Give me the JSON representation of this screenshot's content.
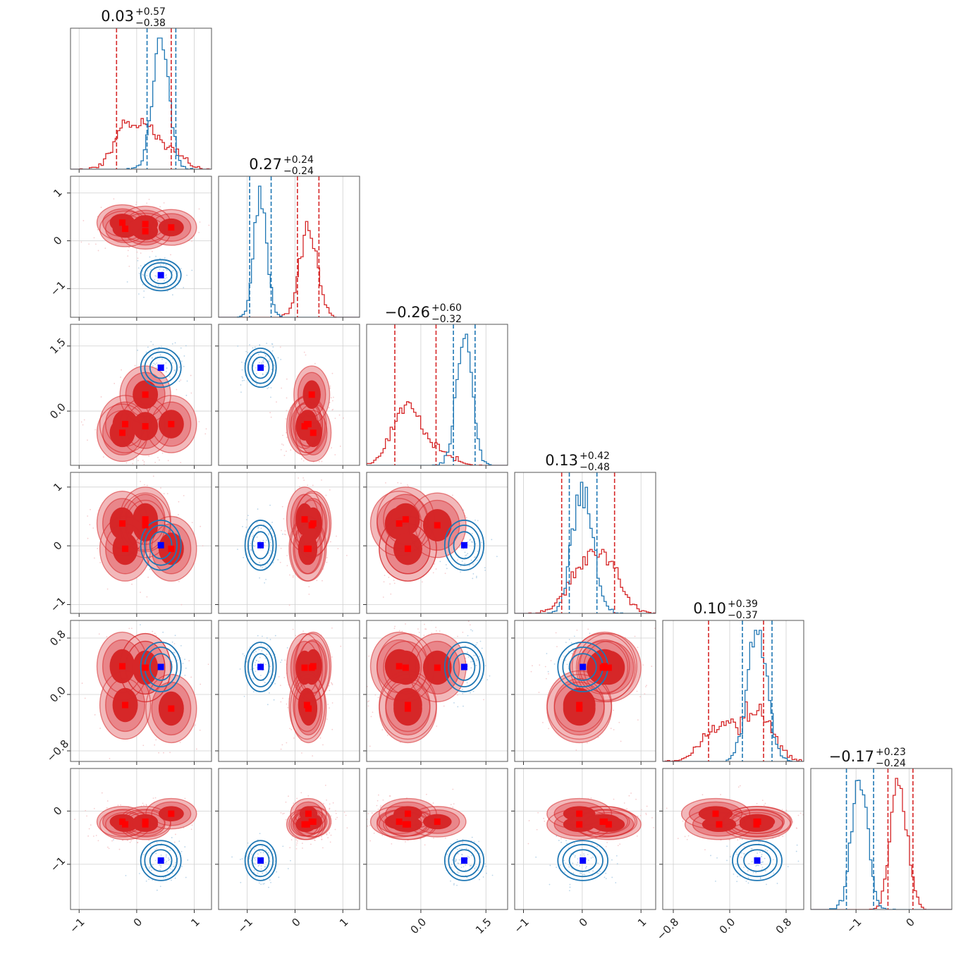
{
  "chart_data": {
    "type": "corner",
    "n_params": 6,
    "colors": {
      "red": "#d62728",
      "red_fill": "#e9868a",
      "red_outer": "#f2b8ba",
      "blue": "#1f77b4",
      "marker_red": "#ff0000",
      "marker_blue": "#0000ff"
    },
    "titles": [
      {
        "value": "0.03",
        "plus": "+0.57",
        "minus": "−0.38"
      },
      {
        "value": "0.27",
        "plus": "+0.24",
        "minus": "−0.24"
      },
      {
        "value": "−0.26",
        "plus": "+0.60",
        "minus": "−0.32"
      },
      {
        "value": "0.13",
        "plus": "+0.42",
        "minus": "−0.48"
      },
      {
        "value": "0.10",
        "plus": "+0.39",
        "minus": "−0.37"
      },
      {
        "value": "−0.17",
        "plus": "+0.23",
        "minus": "−0.24"
      }
    ],
    "ranges": [
      [
        -1.15,
        1.3
      ],
      [
        -1.6,
        1.35
      ],
      [
        -1.25,
        2.0
      ],
      [
        -1.15,
        1.25
      ],
      [
        -0.95,
        1.05
      ],
      [
        -1.85,
        0.8
      ]
    ],
    "ticks": [
      [
        -1,
        0,
        1
      ],
      [
        -1,
        0,
        1
      ],
      [
        0.0,
        1.5
      ],
      [
        -1,
        0,
        1
      ],
      [
        -0.8,
        0.0,
        0.8
      ],
      [
        -1,
        0
      ]
    ],
    "tick_labels": [
      [
        "−1",
        "0",
        "1"
      ],
      [
        "−1",
        "0",
        "1"
      ],
      [
        "0.0",
        "1.5"
      ],
      [
        "−1",
        "0",
        "1"
      ],
      [
        "−0.8",
        "0.0",
        "0.8"
      ],
      [
        "−1",
        "0"
      ]
    ],
    "red_modes": [
      [
        -0.25,
        0.38,
        -0.5,
        0.38,
        0.4,
        -0.2
      ],
      [
        -0.2,
        0.25,
        -0.3,
        -0.05,
        -0.15,
        -0.25
      ],
      [
        0.15,
        0.2,
        -0.35,
        0.45,
        0.38,
        -0.25
      ],
      [
        0.6,
        0.28,
        -0.3,
        -0.05,
        -0.2,
        -0.05
      ],
      [
        0.15,
        0.35,
        0.38,
        0.35,
        0.38,
        -0.2
      ]
    ],
    "blue_mode": [
      0.42,
      -0.72,
      1.0,
      0.01,
      0.39,
      -0.93
    ],
    "red_quantiles": [
      [
        -0.35,
        0.6
      ],
      [
        0.05,
        0.5
      ],
      [
        -0.6,
        0.35
      ],
      [
        -0.35,
        0.55
      ],
      [
        -0.3,
        0.48
      ],
      [
        -0.4,
        0.07
      ]
    ],
    "blue_quantiles": [
      [
        0.18,
        0.68
      ],
      [
        -0.95,
        -0.5
      ],
      [
        0.75,
        1.25
      ],
      [
        -0.22,
        0.25
      ],
      [
        0.18,
        0.6
      ],
      [
        -1.18,
        -0.67
      ]
    ]
  }
}
